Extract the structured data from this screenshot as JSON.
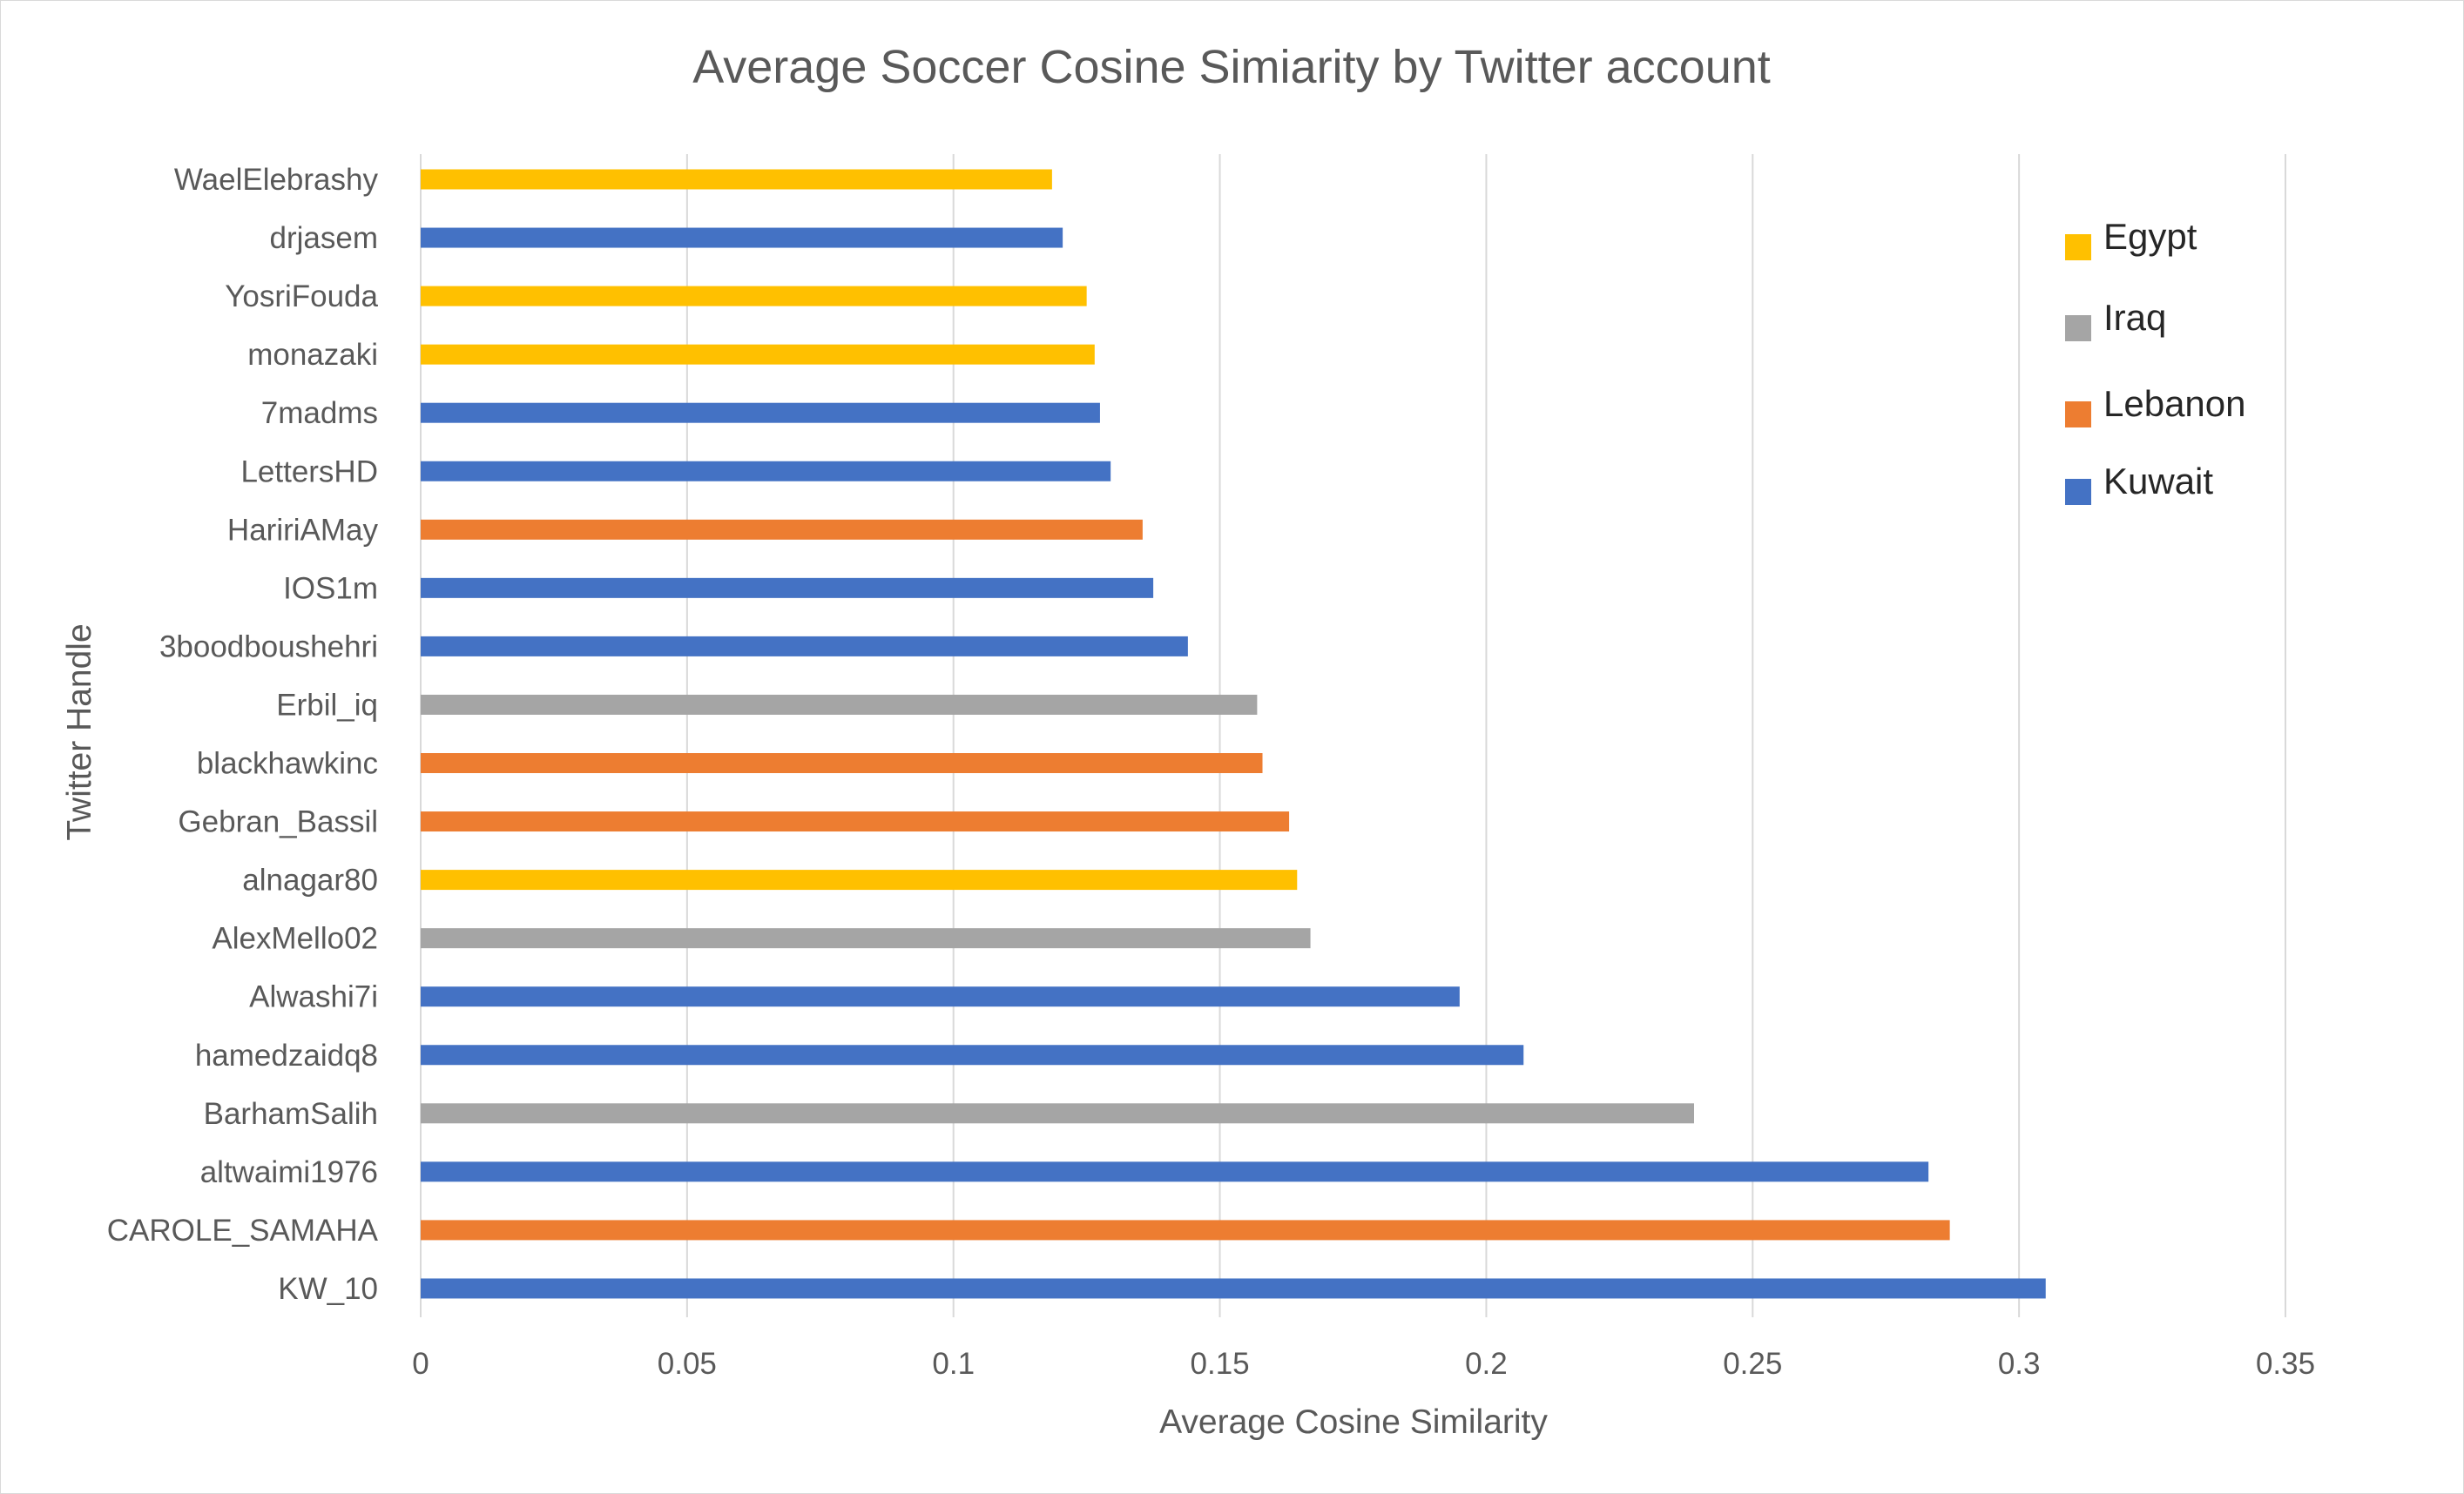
{
  "chart_data": {
    "type": "bar",
    "orientation": "horizontal",
    "title": "Average Soccer Cosine Simiarity by Twitter account",
    "xlabel": "Average Cosine Similarity",
    "ylabel": "Twitter Handle",
    "xlim": [
      0,
      0.35
    ],
    "x_ticks": [
      "0",
      "0.05",
      "0.1",
      "0.15",
      "0.2",
      "0.25",
      "0.3",
      "0.35"
    ],
    "grid": "vertical",
    "legend_position": "top-right",
    "legend": [
      {
        "name": "Egypt",
        "color": "#FFC000"
      },
      {
        "name": "Iraq",
        "color": "#A5A5A5"
      },
      {
        "name": "Lebanon",
        "color": "#ED7D31"
      },
      {
        "name": "Kuwait",
        "color": "#4472C4"
      }
    ],
    "categories": [
      "WaelElebrashy",
      "drjasem",
      "YosriFouda",
      "monazaki",
      "7madms",
      "LettersHD",
      "HaririAMay",
      "IOS1m",
      "3boodboushehri",
      "Erbil_iq",
      "blackhawkinc",
      "Gebran_Bassil",
      "alnagar80",
      "AlexMello02",
      "Alwashi7i",
      "hamedzaidq8",
      "BarhamSalih",
      "altwaimi1976",
      "CAROLE_SAMAHA",
      "KW_10"
    ],
    "values": [
      0.1185,
      0.1205,
      0.125,
      0.1265,
      0.1275,
      0.1295,
      0.1355,
      0.1375,
      0.144,
      0.157,
      0.158,
      0.163,
      0.1645,
      0.167,
      0.195,
      0.207,
      0.239,
      0.283,
      0.287,
      0.305
    ],
    "groups": [
      "Egypt",
      "Kuwait",
      "Egypt",
      "Egypt",
      "Kuwait",
      "Kuwait",
      "Lebanon",
      "Kuwait",
      "Kuwait",
      "Iraq",
      "Lebanon",
      "Lebanon",
      "Egypt",
      "Iraq",
      "Kuwait",
      "Kuwait",
      "Iraq",
      "Kuwait",
      "Lebanon",
      "Kuwait"
    ]
  }
}
